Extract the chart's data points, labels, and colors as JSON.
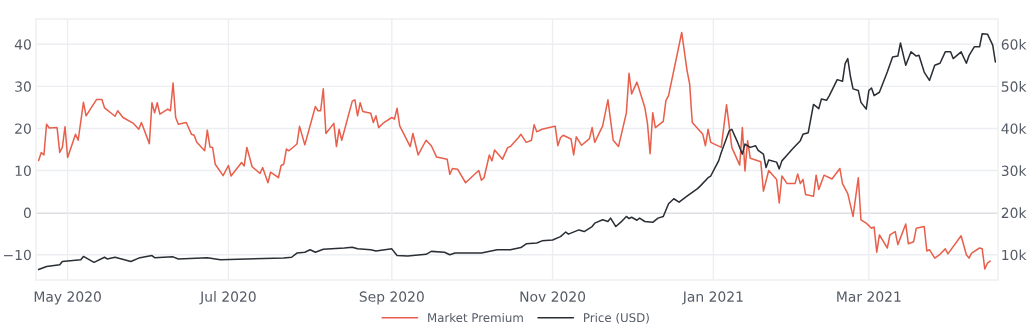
{
  "chart_data": {
    "type": "line",
    "xlim": [
      "2020-04-19",
      "2021-04-19"
    ],
    "xticks": [
      {
        "value": "2020-05-01",
        "label": "May 2020"
      },
      {
        "value": "2020-07-01",
        "label": "Jul 2020"
      },
      {
        "value": "2020-09-01",
        "label": "Sep 2020"
      },
      {
        "value": "2020-11-01",
        "label": "Nov 2020"
      },
      {
        "value": "2021-01-01",
        "label": "Jan 2021"
      },
      {
        "value": "2021-03-01",
        "label": "Mar 2021"
      }
    ],
    "ylim": [
      -16,
      46
    ],
    "yticks": [
      {
        "value": -10,
        "label": "−10"
      },
      0,
      10,
      20,
      30,
      40
    ],
    "y2lim": [
      4000,
      66000
    ],
    "y2ticks": [
      {
        "value": 10000,
        "label": "10k"
      },
      {
        "value": 20000,
        "label": "20k"
      },
      {
        "value": 30000,
        "label": "30k"
      },
      {
        "value": 40000,
        "label": "40k"
      },
      {
        "value": 50000,
        "label": "50k"
      },
      {
        "value": 60000,
        "label": "60k"
      }
    ],
    "grid": true,
    "legend": "bottom",
    "marker": "none",
    "line_style": "solid",
    "ref_lines": [
      {
        "axis": "y",
        "value": 0,
        "color": "#6b6b6b"
      }
    ],
    "series": [
      {
        "name": "Market Premium",
        "color": "#e8604c",
        "axis": "y",
        "x": [
          "2020-04-20",
          "2020-04-21",
          "2020-04-22",
          "2020-04-23",
          "2020-04-24",
          "2020-04-27",
          "2020-04-28",
          "2020-04-29",
          "2020-04-30",
          "2020-05-01",
          "2020-05-04",
          "2020-05-05",
          "2020-05-07",
          "2020-05-08",
          "2020-05-12",
          "2020-05-14",
          "2020-05-15",
          "2020-05-19",
          "2020-05-20",
          "2020-05-22",
          "2020-05-26",
          "2020-05-28",
          "2020-05-29",
          "2020-06-01",
          "2020-06-02",
          "2020-06-03",
          "2020-06-04",
          "2020-06-05",
          "2020-06-08",
          "2020-06-09",
          "2020-06-10",
          "2020-06-11",
          "2020-06-12",
          "2020-06-15",
          "2020-06-17",
          "2020-06-18",
          "2020-06-19",
          "2020-06-22",
          "2020-06-23",
          "2020-06-24",
          "2020-06-25",
          "2020-06-26",
          "2020-06-29",
          "2020-07-01",
          "2020-07-02",
          "2020-07-06",
          "2020-07-07",
          "2020-07-08",
          "2020-07-10",
          "2020-07-13",
          "2020-07-14",
          "2020-07-16",
          "2020-07-17",
          "2020-07-20",
          "2020-07-21",
          "2020-07-22",
          "2020-07-23",
          "2020-07-24",
          "2020-07-27",
          "2020-07-28",
          "2020-07-30",
          "2020-08-03",
          "2020-08-04",
          "2020-08-05",
          "2020-08-06",
          "2020-08-07",
          "2020-08-10",
          "2020-08-11",
          "2020-08-12",
          "2020-08-13",
          "2020-08-17",
          "2020-08-18",
          "2020-08-19",
          "2020-08-20",
          "2020-08-21",
          "2020-08-24",
          "2020-08-25",
          "2020-08-26",
          "2020-08-27",
          "2020-08-29",
          "2020-09-01",
          "2020-09-02",
          "2020-09-03",
          "2020-09-04",
          "2020-09-08",
          "2020-09-09",
          "2020-09-11",
          "2020-09-14",
          "2020-09-16",
          "2020-09-18",
          "2020-09-22",
          "2020-09-23",
          "2020-09-24",
          "2020-09-26",
          "2020-09-29",
          "2020-10-01",
          "2020-10-04",
          "2020-10-05",
          "2020-10-06",
          "2020-10-08",
          "2020-10-09",
          "2020-10-10",
          "2020-10-13",
          "2020-10-15",
          "2020-10-16",
          "2020-10-19",
          "2020-10-20",
          "2020-10-22",
          "2020-10-24",
          "2020-10-25",
          "2020-10-26",
          "2020-10-28",
          "2020-11-01",
          "2020-11-02",
          "2020-11-03",
          "2020-11-04",
          "2020-11-05",
          "2020-11-07",
          "2020-11-08",
          "2020-11-09",
          "2020-11-10",
          "2020-11-12",
          "2020-11-15",
          "2020-11-16",
          "2020-11-17",
          "2020-11-20",
          "2020-11-22",
          "2020-11-24",
          "2020-11-26",
          "2020-11-29",
          "2020-11-30",
          "2020-12-01",
          "2020-12-03",
          "2020-12-06",
          "2020-12-07",
          "2020-12-08",
          "2020-12-09",
          "2020-12-10",
          "2020-12-13",
          "2020-12-14",
          "2020-12-15",
          "2020-12-20",
          "2020-12-22",
          "2020-12-23",
          "2020-12-24",
          "2020-12-28",
          "2020-12-29",
          "2020-12-30",
          "2020-12-31",
          "2021-01-04",
          "2021-01-06",
          "2021-01-07",
          "2021-01-08",
          "2021-01-11",
          "2021-01-12",
          "2021-01-13",
          "2021-01-14",
          "2021-01-15",
          "2021-01-19",
          "2021-01-20",
          "2021-01-22",
          "2021-01-25",
          "2021-01-26",
          "2021-01-27",
          "2021-01-29",
          "2021-02-01",
          "2021-02-02",
          "2021-02-03",
          "2021-02-04",
          "2021-02-05",
          "2021-02-08",
          "2021-02-09",
          "2021-02-10",
          "2021-02-12",
          "2021-02-15",
          "2021-02-18",
          "2021-02-19",
          "2021-02-21",
          "2021-02-23",
          "2021-02-25",
          "2021-02-26",
          "2021-02-28",
          "2021-03-02",
          "2021-03-03",
          "2021-03-04",
          "2021-03-05",
          "2021-03-08",
          "2021-03-09",
          "2021-03-11",
          "2021-03-12",
          "2021-03-15",
          "2021-03-16",
          "2021-03-18",
          "2021-03-19",
          "2021-03-22",
          "2021-03-23",
          "2021-03-24",
          "2021-03-26",
          "2021-03-28",
          "2021-03-30",
          "2021-03-31",
          "2021-04-05",
          "2021-04-07",
          "2021-04-08",
          "2021-04-09",
          "2021-04-12",
          "2021-04-13",
          "2021-04-14",
          "2021-04-15",
          "2021-04-16"
        ],
        "values": [
          12.4,
          14.3,
          13.7,
          21.0,
          20.1,
          20.2,
          14.3,
          15.5,
          20.4,
          13.1,
          18.6,
          17.2,
          26.2,
          23.0,
          26.9,
          26.9,
          24.9,
          22.9,
          24.2,
          22.6,
          21.2,
          19.8,
          21.4,
          16.4,
          26.1,
          23.7,
          26.1,
          23.4,
          24.6,
          24.2,
          30.8,
          22.6,
          21.0,
          21.4,
          18.6,
          18.4,
          16.7,
          14.7,
          19.6,
          15.6,
          15.5,
          11.5,
          8.8,
          11.2,
          8.7,
          11.9,
          11.1,
          15.5,
          10.9,
          9.3,
          10.7,
          7.1,
          9.6,
          8.3,
          11.2,
          11.5,
          15.1,
          14.7,
          16.3,
          20.5,
          16.1,
          25.2,
          24.2,
          24.2,
          29.4,
          18.8,
          21.2,
          15.7,
          19.8,
          17.2,
          26.5,
          26.8,
          23.0,
          26.1,
          24.0,
          23.6,
          21.4,
          23.0,
          20.2,
          21.4,
          22.6,
          22.2,
          24.8,
          20.6,
          15.7,
          18.8,
          13.7,
          17.2,
          15.9,
          13.2,
          12.7,
          9.1,
          10.5,
          10.3,
          7.1,
          8.3,
          10.0,
          7.7,
          8.3,
          13.7,
          12.3,
          14.9,
          12.7,
          15.5,
          15.7,
          17.8,
          18.6,
          16.7,
          17.2,
          20.9,
          19.2,
          19.8,
          20.4,
          20.5,
          15.9,
          17.8,
          18.4,
          17.8,
          17.5,
          13.7,
          18.0,
          16.0,
          17.6,
          20.2,
          16.7,
          20.6,
          26.8,
          17.2,
          15.7,
          23.7,
          33.1,
          28.2,
          31.0,
          25.0,
          21.2,
          14.0,
          23.7,
          20.2,
          21.7,
          26.6,
          27.8,
          42.8,
          33.8,
          30.6,
          21.4,
          18.6,
          15.9,
          19.8,
          16.7,
          15.5,
          25.6,
          20.6,
          15.5,
          11.3,
          20.2,
          9.9,
          17.1,
          12.9,
          12.1,
          5.1,
          10.0,
          7.9,
          2.3,
          8.7,
          6.9,
          6.9,
          9.2,
          6.9,
          7.9,
          4.3,
          3.9,
          8.9,
          5.5,
          8.9,
          8.0,
          10.5,
          6.9,
          4.5,
          -0.9,
          8.3,
          -1.7,
          -2.5,
          -3.7,
          -3.4,
          -9.4,
          -5.3,
          -8.4,
          -5.3,
          -4.5,
          -7.6,
          -2.7,
          -7.4,
          -6.9,
          -3.7,
          -3.3,
          -9.1,
          -8.8,
          -10.8,
          -9.9,
          -8.6,
          -9.8,
          -5.5,
          -10.0,
          -10.8,
          -9.6,
          -8.4,
          -8.6,
          -13.4,
          -12.0,
          -11.5
        ]
      },
      {
        "name": "Price (USD)",
        "color": "#2a2f36",
        "axis": "y2",
        "x": [
          "2020-04-20",
          "2020-04-23",
          "2020-04-28",
          "2020-04-29",
          "2020-05-06",
          "2020-05-07",
          "2020-05-11",
          "2020-05-15",
          "2020-05-16",
          "2020-05-19",
          "2020-05-25",
          "2020-05-28",
          "2020-06-02",
          "2020-06-03",
          "2020-06-10",
          "2020-06-12",
          "2020-06-23",
          "2020-06-28",
          "2020-07-08",
          "2020-07-22",
          "2020-07-25",
          "2020-07-27",
          "2020-07-30",
          "2020-08-01",
          "2020-08-03",
          "2020-08-06",
          "2020-08-14",
          "2020-08-17",
          "2020-08-19",
          "2020-08-24",
          "2020-08-26",
          "2020-09-01",
          "2020-09-03",
          "2020-09-07",
          "2020-09-14",
          "2020-09-16",
          "2020-09-21",
          "2020-09-23",
          "2020-09-25",
          "2020-10-05",
          "2020-10-11",
          "2020-10-16",
          "2020-10-20",
          "2020-10-22",
          "2020-10-26",
          "2020-10-28",
          "2020-11-01",
          "2020-11-04",
          "2020-11-06",
          "2020-11-07",
          "2020-11-11",
          "2020-11-13",
          "2020-11-16",
          "2020-11-17",
          "2020-11-20",
          "2020-11-22",
          "2020-11-23",
          "2020-11-25",
          "2020-11-27",
          "2020-11-29",
          "2020-11-30",
          "2020-12-01",
          "2020-12-03",
          "2020-12-04",
          "2020-12-06",
          "2020-12-09",
          "2020-12-11",
          "2020-12-13",
          "2020-12-15",
          "2020-12-17",
          "2020-12-19",
          "2020-12-22",
          "2020-12-26",
          "2020-12-27",
          "2020-12-30",
          "2020-12-31",
          "2021-01-02",
          "2021-01-03",
          "2021-01-04",
          "2021-01-07",
          "2021-01-08",
          "2021-01-10",
          "2021-01-12",
          "2021-01-13",
          "2021-01-15",
          "2021-01-17",
          "2021-01-18",
          "2021-01-20",
          "2021-01-21",
          "2021-01-22",
          "2021-01-25",
          "2021-01-26",
          "2021-01-27",
          "2021-01-29",
          "2021-01-31",
          "2021-02-03",
          "2021-02-04",
          "2021-02-06",
          "2021-02-08",
          "2021-02-10",
          "2021-02-11",
          "2021-02-13",
          "2021-02-14",
          "2021-02-17",
          "2021-02-19",
          "2021-02-20",
          "2021-02-21",
          "2021-02-22",
          "2021-02-23",
          "2021-02-25",
          "2021-02-26",
          "2021-02-28",
          "2021-03-01",
          "2021-03-02",
          "2021-03-03",
          "2021-03-05",
          "2021-03-08",
          "2021-03-10",
          "2021-03-12",
          "2021-03-13",
          "2021-03-15",
          "2021-03-17",
          "2021-03-19",
          "2021-03-20",
          "2021-03-22",
          "2021-03-24",
          "2021-03-26",
          "2021-03-28",
          "2021-03-30",
          "2021-04-01",
          "2021-04-02",
          "2021-04-05",
          "2021-04-07",
          "2021-04-08",
          "2021-04-10",
          "2021-04-12",
          "2021-04-13",
          "2021-04-15",
          "2021-04-17",
          "2021-04-18"
        ],
        "values": [
          6500,
          7200,
          7600,
          8400,
          8800,
          9600,
          8200,
          9400,
          9000,
          9400,
          8400,
          9200,
          9800,
          9300,
          9500,
          9000,
          9300,
          8800,
          9000,
          9200,
          9400,
          10400,
          10600,
          11200,
          10600,
          11300,
          11600,
          11800,
          11400,
          11200,
          10900,
          11400,
          9800,
          9700,
          10100,
          10800,
          10600,
          10000,
          10400,
          10400,
          11200,
          11200,
          11700,
          12600,
          12800,
          13300,
          13500,
          14300,
          15400,
          14900,
          15900,
          15500,
          16700,
          17500,
          18300,
          17900,
          18700,
          16700,
          17800,
          19100,
          18600,
          18900,
          18200,
          18700,
          17900,
          17700,
          18700,
          19100,
          22100,
          23300,
          22500,
          23900,
          25700,
          26300,
          28300,
          28700,
          31100,
          32300,
          34300,
          39400,
          39800,
          37000,
          33900,
          36300,
          35500,
          35900,
          34800,
          33900,
          30700,
          32500,
          32000,
          30400,
          32300,
          33700,
          35100,
          37100,
          38600,
          39000,
          45700,
          44700,
          47000,
          46700,
          47800,
          51600,
          51200,
          55400,
          56600,
          52400,
          49400,
          49000,
          46200,
          44600,
          49000,
          49600,
          47800,
          48600,
          53400,
          57000,
          57200,
          60300,
          55000,
          58200,
          57200,
          57400,
          53400,
          51400,
          55000,
          55500,
          58200,
          58200,
          56600,
          58200,
          55500,
          57300,
          59400,
          59400,
          62500,
          62400,
          59800,
          55800
        ]
      }
    ]
  }
}
